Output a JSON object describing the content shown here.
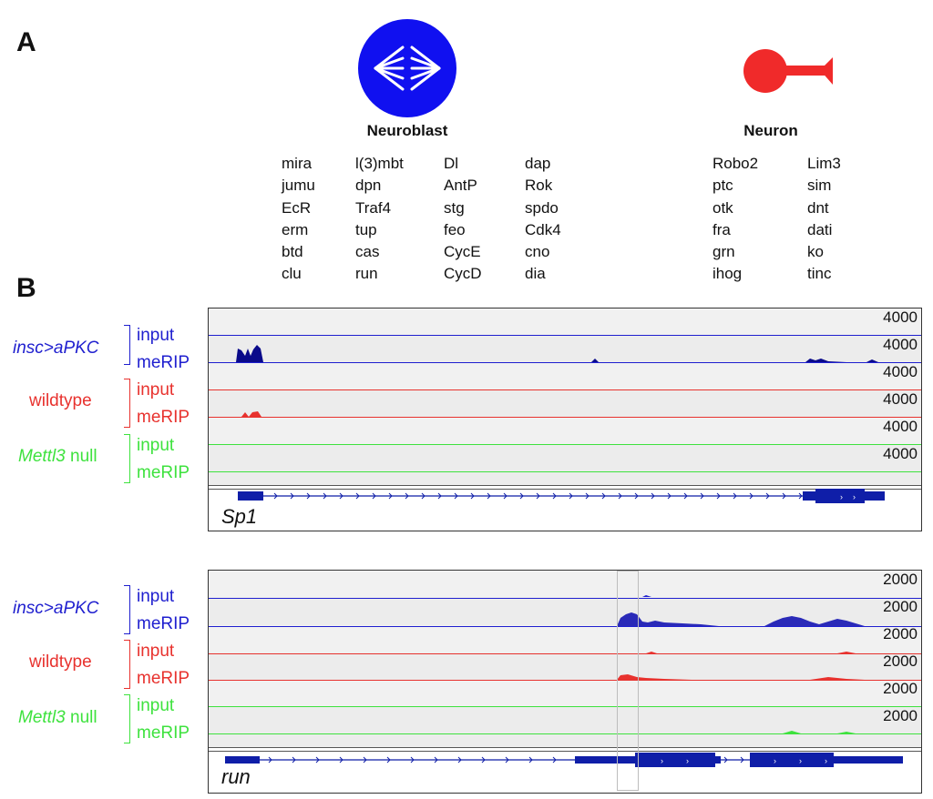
{
  "panel_a": {
    "letter": "A",
    "neuroblast": {
      "title": "Neuroblast",
      "col1": [
        "mira",
        "jumu",
        "EcR",
        "erm",
        "btd",
        "clu"
      ],
      "col2": [
        "l(3)mbt",
        "dpn",
        "Traf4",
        "tup",
        "cas",
        "run"
      ],
      "col3": [
        "Dl",
        "AntP",
        "stg",
        "feo",
        "CycE",
        "CycD"
      ],
      "col4": [
        "dap",
        "Rok",
        "spdo",
        "Cdk4",
        "cno",
        "dia"
      ]
    },
    "neuron": {
      "title": "Neuron",
      "col1": [
        "Robo2",
        "ptc",
        "otk",
        "fra",
        "grn",
        "ihog"
      ],
      "col2": [
        "Lim3",
        "sim",
        "dnt",
        "dati",
        "ko",
        "tinc"
      ]
    }
  },
  "panel_b": {
    "letter": "B",
    "conditions": [
      {
        "name_italic": "insc>aPKC",
        "name_plain": "",
        "color": "#1f1fcf"
      },
      {
        "name_italic": "",
        "name_plain": "wildtype",
        "color": "#e8322e"
      },
      {
        "name_italic": "Mettl3",
        "name_plain": " null",
        "color": "#3ee23e"
      }
    ],
    "track_input": "input",
    "track_merip": "meRIP",
    "top_gene": "Sp1",
    "top_scale": [
      "4000",
      "4000",
      "4000",
      "4000",
      "4000",
      "4000"
    ],
    "bottom_gene": "run",
    "bottom_scale": [
      "2000",
      "2000",
      "2000",
      "2000",
      "2000",
      "2000"
    ]
  },
  "colors": {
    "blue": "#1f1fcf",
    "red": "#e8322e",
    "green": "#3ee23e",
    "dark_blue": "#0a0a8a",
    "gene_blue": "#0f1ea8"
  }
}
